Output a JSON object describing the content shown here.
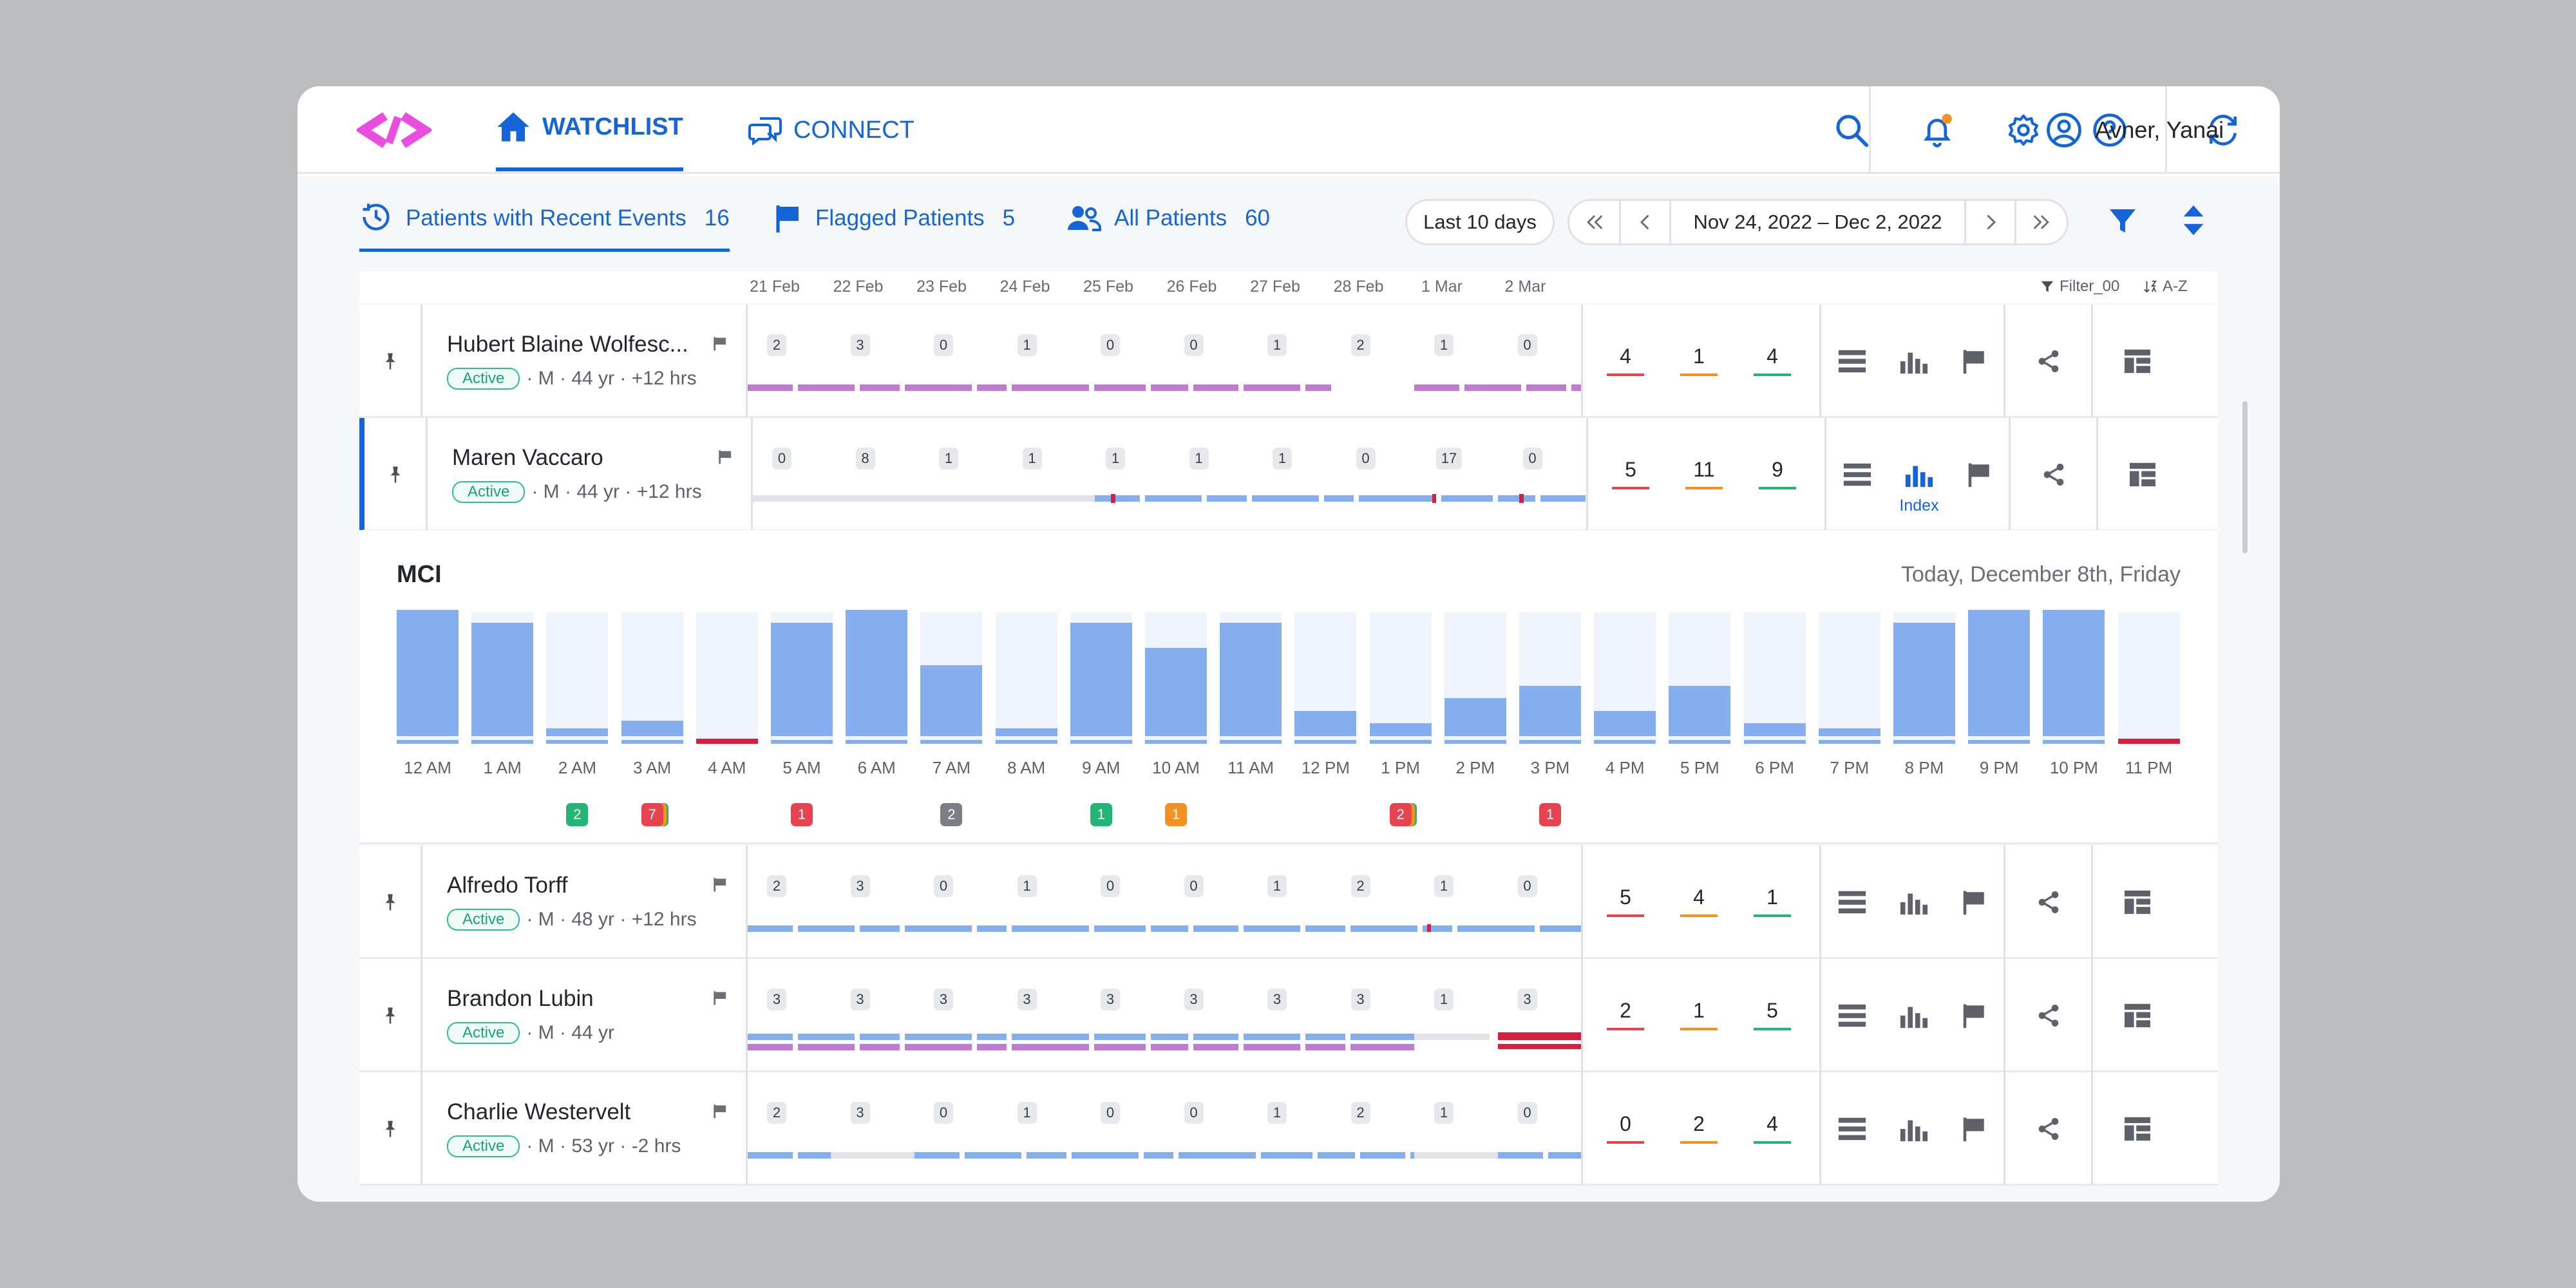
{
  "nav": {
    "watchlist_label": "WATCHLIST",
    "connect_label": "CONNECT",
    "user_name": "Avner, Yanai"
  },
  "tabs": [
    {
      "label": "Patients with Recent Events",
      "count": "16"
    },
    {
      "label": "Flagged Patients",
      "count": "5"
    },
    {
      "label": "All Patients",
      "count": "60"
    }
  ],
  "toolbar": {
    "range_label": "Last 10 days",
    "date_range": "Nov 24, 2022 – Dec 2, 2022",
    "filter_label": "Filter_00",
    "sort_label": "A-Z"
  },
  "dates": [
    "21 Feb",
    "22 Feb",
    "23 Feb",
    "24 Feb",
    "25 Feb",
    "26 Feb",
    "27 Feb",
    "28 Feb",
    "1 Mar",
    "2 Mar"
  ],
  "patients": [
    {
      "name": "Hubert Blaine Wolfesc...",
      "status": "Active",
      "meta": "· M · 44 yr · +12 hrs",
      "counts": [
        "2",
        "3",
        "0",
        "1",
        "0",
        "0",
        "1",
        "2",
        "1",
        "0"
      ],
      "stats": [
        "4",
        "1",
        "4"
      ]
    },
    {
      "name": "Maren Vaccaro",
      "status": "Active",
      "meta": "· M · 44 yr · +12 hrs",
      "counts": [
        "0",
        "8",
        "1",
        "1",
        "1",
        "1",
        "1",
        "0",
        "17",
        "0"
      ],
      "stats": [
        "5",
        "11",
        "9"
      ],
      "index_label": "Index"
    },
    {
      "name": "Alfredo Torff",
      "status": "Active",
      "meta": "· M · 48 yr · +12 hrs",
      "counts": [
        "2",
        "3",
        "0",
        "1",
        "0",
        "0",
        "1",
        "2",
        "1",
        "0"
      ],
      "stats": [
        "5",
        "4",
        "1"
      ]
    },
    {
      "name": "Brandon Lubin",
      "status": "Active",
      "meta": "· M · 44 yr",
      "counts": [
        "3",
        "3",
        "3",
        "3",
        "3",
        "3",
        "3",
        "3",
        "1",
        "3"
      ],
      "stats": [
        "2",
        "1",
        "5"
      ]
    },
    {
      "name": "Charlie Westervelt",
      "status": "Active",
      "meta": "· M · 53 yr · -2 hrs",
      "counts": [
        "2",
        "3",
        "0",
        "1",
        "0",
        "0",
        "1",
        "2",
        "1",
        "0"
      ],
      "stats": [
        "0",
        "2",
        "4"
      ]
    }
  ],
  "detail": {
    "title": "MCI",
    "date": "Today, December 8th, Friday",
    "hours": [
      "12 AM",
      "1 AM",
      "2 AM",
      "3 AM",
      "4 AM",
      "5 AM",
      "6 AM",
      "7 AM",
      "8 AM",
      "9 AM",
      "10 AM",
      "11 AM",
      "12 PM",
      "1 PM",
      "2 PM",
      "3 PM",
      "4 PM",
      "5 PM",
      "6 PM",
      "7 PM",
      "8 PM",
      "9 PM",
      "10 PM",
      "11 PM"
    ],
    "hour_fill": [
      1.0,
      0.9,
      0.06,
      0.12,
      0.0,
      0.9,
      1.0,
      0.56,
      0.06,
      0.9,
      0.7,
      0.9,
      0.2,
      0.1,
      0.3,
      0.4,
      0.2,
      0.4,
      0.1,
      0.06,
      0.9,
      1.0,
      1.0,
      0.0
    ],
    "events": [
      {
        "hour": 2,
        "count": "2",
        "color": "#22b573"
      },
      {
        "hour": 3,
        "count": "7",
        "color": "#e5434f"
      },
      {
        "hour": 5,
        "count": "1",
        "color": "#e5434f"
      },
      {
        "hour": 7,
        "count": "2",
        "color": "#7b7e86"
      },
      {
        "hour": 9,
        "count": "1",
        "color": "#22b573"
      },
      {
        "hour": 10,
        "count": "1",
        "color": "#f39123"
      },
      {
        "hour": 13,
        "count": "2",
        "color": "#e5434f"
      },
      {
        "hour": 15,
        "count": "1",
        "color": "#e5434f"
      }
    ]
  },
  "colors": {
    "accent": "#1565d8",
    "logo": "#e94ee0",
    "bar_blue": "#84aef0",
    "bar_purple": "#c07ad3",
    "alert_red": "#d6213e",
    "stat_red": "#e5434f",
    "stat_orange": "#f39123",
    "stat_green": "#22b573"
  }
}
